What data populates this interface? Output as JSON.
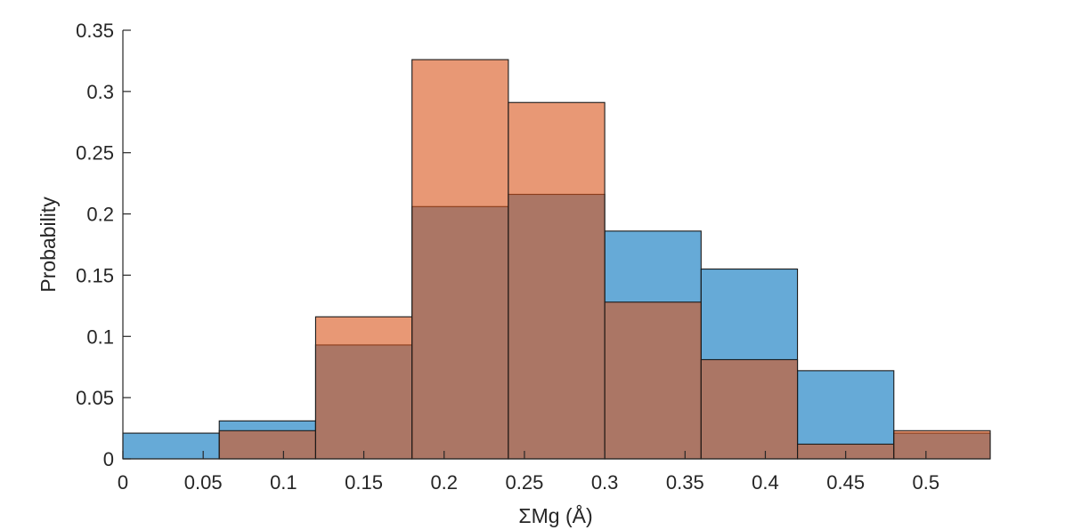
{
  "chart_data": {
    "type": "bar",
    "subtype": "overlapping-histogram",
    "title": "",
    "xlabel": "ΣMg (Å)",
    "ylabel": "Probability",
    "xlim": [
      0,
      0.54
    ],
    "ylim": [
      0,
      0.35
    ],
    "x_ticks": [
      0,
      0.05,
      0.1,
      0.15,
      0.2,
      0.25,
      0.3,
      0.35,
      0.4,
      0.45,
      0.5
    ],
    "x_tick_labels": [
      "0",
      "0.05",
      "0.1",
      "0.15",
      "0.2",
      "0.25",
      "0.3",
      "0.35",
      "0.4",
      "0.45",
      "0.5"
    ],
    "y_ticks": [
      0,
      0.05,
      0.1,
      0.15,
      0.2,
      0.25,
      0.3,
      0.35
    ],
    "y_tick_labels": [
      "0",
      "0.05",
      "0.1",
      "0.15",
      "0.2",
      "0.25",
      "0.3",
      "0.35"
    ],
    "bin_edges": [
      0,
      0.06,
      0.12,
      0.18,
      0.24,
      0.3,
      0.36,
      0.42,
      0.48,
      0.54
    ],
    "grid": false,
    "legend": "none",
    "series": [
      {
        "color": "#0072BD",
        "opacity": 0.6,
        "values": [
          0.021,
          0.031,
          0.093,
          0.206,
          0.216,
          0.186,
          0.155,
          0.072,
          0.021
        ]
      },
      {
        "color": "#D95319",
        "opacity": 0.6,
        "values": [
          0.0,
          0.023,
          0.116,
          0.326,
          0.291,
          0.128,
          0.081,
          0.012,
          0.023
        ]
      }
    ]
  }
}
